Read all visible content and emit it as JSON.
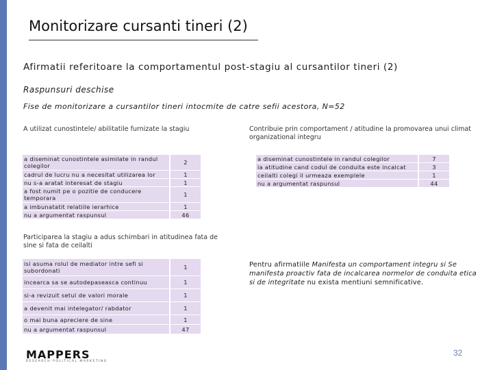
{
  "header": {
    "title": "Monitorizare cursanti tineri (2)",
    "subtitle": "Afirmatii referitoare la comportamentul post-stagiu al cursantilor tineri (2)",
    "section": "Raspunsuri deschise",
    "note": "Fise de monitorizare a cursantilor tineri intocmite de catre sefii acestora, N=52"
  },
  "tables": {
    "utilizat": {
      "caption": "A utilizat cunostintele/ abilitatile furnizate la stagiu",
      "rows": [
        {
          "label": "a diseminat cunostintele asimilate in randul colegilor",
          "value": "2"
        },
        {
          "label": "cadrul de lucru nu a necesitat utilizarea lor",
          "value": "1"
        },
        {
          "label": "nu s-a aratat interesat de stagiu",
          "value": "1"
        },
        {
          "label": "a fost numit pe o pozitie de conducere temporara",
          "value": "1"
        },
        {
          "label": "a imbunatatit relatiile ierarhice",
          "value": "1"
        },
        {
          "label": "nu a argumentat raspunsul",
          "value": "46"
        }
      ]
    },
    "contributie": {
      "caption": "Contribuie prin comportament / atitudine la promovarea unui climat organizational integru",
      "rows": [
        {
          "label": "a diseminat cunostintele in randul colegilor",
          "value": "7"
        },
        {
          "label": "ia atitudine cand codul de conduita este incalcat",
          "value": "3"
        },
        {
          "label": "ceilalti colegi il urmeaza exemplele",
          "value": "1"
        },
        {
          "label": "nu a argumentat raspunsul",
          "value": "44"
        }
      ]
    },
    "participarea": {
      "caption": "Participarea la stagiu a adus schimbari in atitudinea fata de sine si fata de ceilalti",
      "rows": [
        {
          "label": "isi asuma rolul de mediator intre sefi si subordonati",
          "value": "1"
        },
        {
          "label": "incearca sa se autodepaseasca continuu",
          "value": "1"
        },
        {
          "label": "si-a revizuit setul de valori morale",
          "value": "1"
        },
        {
          "label": "a devenit mai intelegator/ rabdator",
          "value": "1"
        },
        {
          "label": "o mai buna apreciere de sine",
          "value": "1"
        },
        {
          "label": "nu a argumentat raspunsul",
          "value": "47"
        }
      ]
    }
  },
  "paragraph": {
    "prefix": "Pentru afirmatiile ",
    "italic": "Manifesta un comportament integru si Se manifesta proactiv fata de incalcarea normelor de conduita etica si de integritate",
    "suffix": " nu exista mentiuni semnificative."
  },
  "footer": {
    "logo": "MAPPERS",
    "logo_sub": "RESEARCH  POLITICAL  MARKETING",
    "page_number": "32"
  },
  "colors": {
    "accent_bar": "#5a78b4",
    "table_fill": "#e4d9ef",
    "page_number": "#6d7fb0"
  }
}
